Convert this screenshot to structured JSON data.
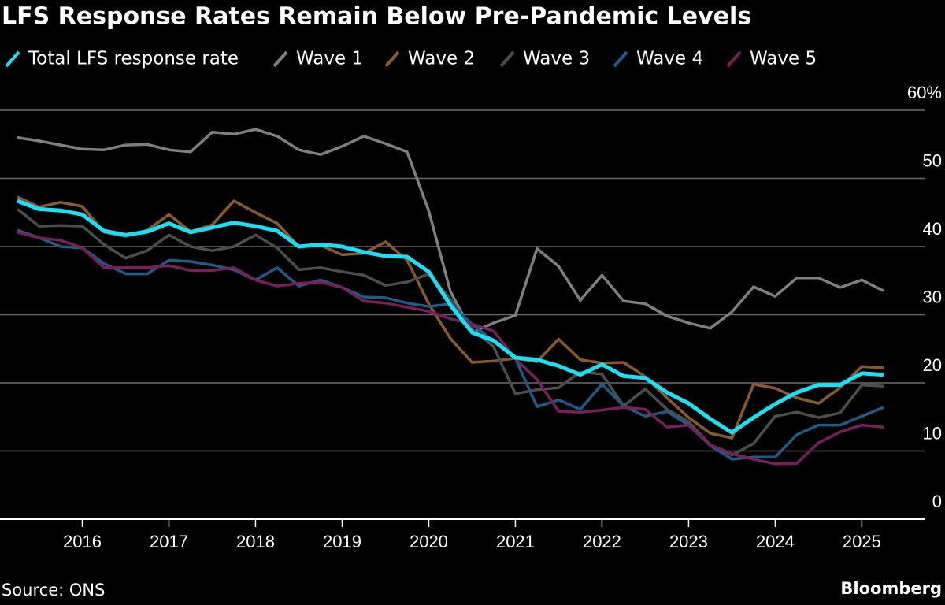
{
  "chart_data": {
    "type": "line",
    "title": "LFS Response Rates Remain Below Pre-Pandemic Levels",
    "source": "Source: ONS",
    "brand": "Bloomberg",
    "x": [
      2015.25,
      2015.5,
      2015.75,
      2016,
      2016.25,
      2016.5,
      2016.75,
      2017,
      2017.25,
      2017.5,
      2017.75,
      2018,
      2018.25,
      2018.5,
      2018.75,
      2019,
      2019.25,
      2019.5,
      2019.75,
      2020,
      2020.25,
      2020.5,
      2020.75,
      2021,
      2021.25,
      2021.5,
      2021.75,
      2022,
      2022.25,
      2022.5,
      2022.75,
      2023,
      2023.25,
      2023.5,
      2023.75,
      2024,
      2024.25,
      2024.5,
      2024.75,
      2025,
      2025.25
    ],
    "xlim": [
      2015.05,
      2025.46
    ],
    "xticks": [
      2016,
      2017,
      2018,
      2019,
      2020,
      2021,
      2022,
      2023,
      2024,
      2025
    ],
    "ylim": [
      0,
      60
    ],
    "yticks": [
      0,
      10,
      20,
      30,
      40,
      50,
      {
        "value": 60,
        "label": "60%"
      }
    ],
    "grid": true,
    "series": [
      {
        "name": "Total LFS response rate",
        "color": "#19e0f5",
        "values": [
          46.7,
          45.5,
          45.3,
          44.7,
          42.3,
          41.7,
          42.2,
          43.4,
          42.1,
          42.8,
          43.5,
          43.0,
          42.3,
          40.0,
          40.3,
          40.0,
          39.2,
          38.6,
          38.5,
          36.3,
          31.4,
          27.4,
          26.2,
          23.7,
          23.4,
          22.5,
          21.2,
          22.7,
          21.0,
          20.7,
          18.6,
          17.0,
          14.7,
          12.7,
          14.9,
          16.9,
          18.6,
          19.7,
          19.7,
          21.4,
          21.2
        ]
      },
      {
        "name": "Wave 1",
        "color": "#7f7f7f",
        "values": [
          56.0,
          55.5,
          54.9,
          54.3,
          54.2,
          54.9,
          55.0,
          54.2,
          53.9,
          56.8,
          56.5,
          57.2,
          56.2,
          54.2,
          53.5,
          54.7,
          56.2,
          55.1,
          53.9,
          45.2,
          33.4,
          27.4,
          28.8,
          29.9,
          39.7,
          37.1,
          32.1,
          35.8,
          32.0,
          31.6,
          29.8,
          28.8,
          28.0,
          30.4,
          34.1,
          32.7,
          35.4,
          35.4,
          34.0,
          35.1,
          33.5
        ]
      },
      {
        "name": "Wave 2",
        "color": "#8a5a2b",
        "values": [
          47.3,
          45.8,
          46.5,
          45.9,
          42.1,
          41.5,
          42.4,
          44.7,
          42.2,
          43.2,
          46.7,
          45.0,
          43.4,
          40.0,
          40.2,
          38.8,
          39.0,
          40.7,
          38.0,
          31.6,
          26.5,
          23.0,
          23.2,
          23.6,
          23.1,
          26.4,
          23.4,
          22.9,
          23.0,
          20.9,
          17.8,
          14.9,
          12.6,
          11.9,
          19.8,
          19.2,
          17.8,
          17.0,
          19.3,
          22.4,
          22.2
        ]
      },
      {
        "name": "Wave 3",
        "color": "#4d4d4d",
        "values": [
          45.5,
          43.0,
          43.1,
          43.0,
          40.3,
          38.3,
          39.4,
          41.7,
          40.0,
          39.4,
          40.0,
          41.7,
          39.8,
          36.6,
          36.9,
          36.3,
          35.8,
          34.3,
          34.8,
          36.0,
          32.3,
          27.9,
          25.3,
          18.4,
          19.0,
          19.3,
          21.6,
          21.3,
          16.6,
          19.1,
          16.1,
          14.3,
          10.9,
          9.4,
          11.1,
          15.1,
          15.7,
          14.9,
          15.6,
          19.7,
          19.5
        ]
      },
      {
        "name": "Wave 4",
        "color": "#1d5c87",
        "values": [
          42.4,
          41.3,
          40.0,
          39.8,
          37.5,
          36.0,
          36.0,
          38.0,
          37.8,
          37.3,
          36.6,
          35.1,
          36.9,
          34.2,
          35.1,
          34.0,
          32.6,
          32.5,
          31.7,
          31.2,
          31.6,
          28.6,
          26.1,
          23.6,
          16.5,
          17.5,
          16.1,
          19.8,
          16.6,
          15.1,
          15.8,
          13.8,
          10.8,
          8.8,
          9.1,
          9.1,
          12.4,
          13.8,
          13.8,
          15.1,
          16.4
        ]
      },
      {
        "name": "Wave 5",
        "color": "#7a1f5c",
        "values": [
          42.1,
          41.3,
          40.9,
          39.8,
          36.9,
          36.9,
          36.9,
          37.2,
          36.5,
          36.5,
          36.9,
          35.1,
          34.2,
          34.6,
          34.8,
          34.0,
          32.0,
          31.7,
          31.1,
          30.5,
          29.4,
          28.6,
          27.6,
          23.5,
          20.5,
          15.8,
          15.7,
          16.0,
          16.4,
          16.1,
          13.5,
          13.8,
          10.9,
          9.6,
          8.8,
          8.1,
          8.2,
          11.2,
          12.8,
          13.8,
          13.5
        ]
      }
    ]
  }
}
